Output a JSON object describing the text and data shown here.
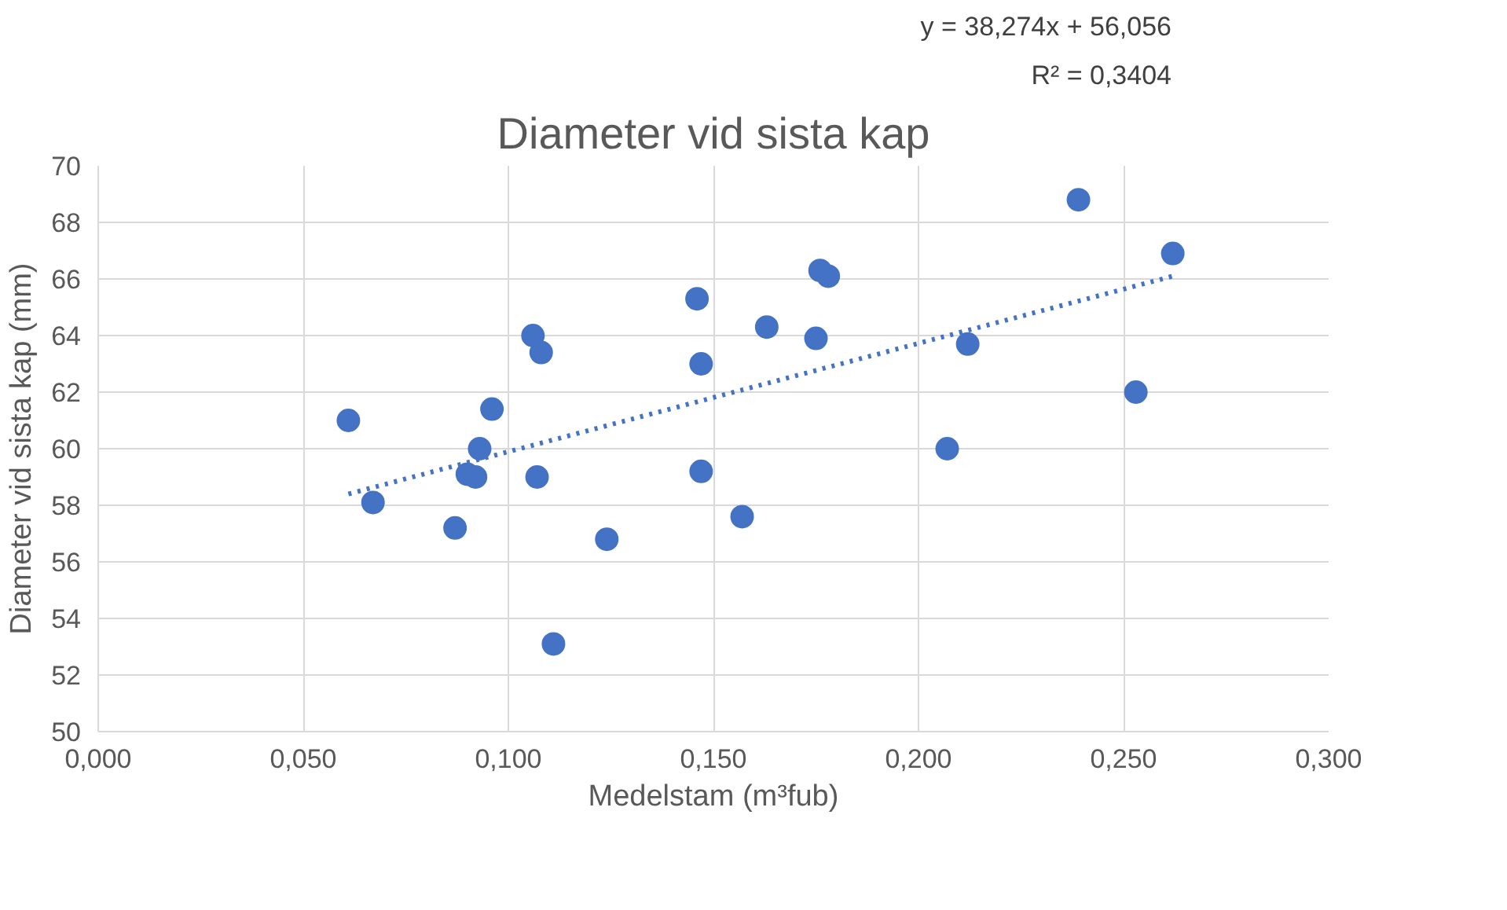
{
  "chart_data": {
    "type": "scatter",
    "title": "Diameter vid sista kap",
    "xlabel": "Medelstam (m³fub)",
    "ylabel": "Diameter vid sista kap (mm)",
    "series": [
      {
        "color": "#4472c4",
        "x": [
          0.061,
          0.067,
          0.087,
          0.09,
          0.092,
          0.093,
          0.096,
          0.106,
          0.108,
          0.107,
          0.111,
          0.124,
          0.146,
          0.147,
          0.147,
          0.157,
          0.163,
          0.175,
          0.176,
          0.178,
          0.207,
          0.212,
          0.239,
          0.253,
          0.262
        ],
        "values": [
          61.0,
          58.1,
          57.2,
          59.1,
          59.0,
          60.0,
          61.4,
          64.0,
          63.4,
          59.0,
          53.1,
          56.8,
          65.3,
          59.2,
          63.0,
          57.6,
          64.3,
          63.9,
          66.3,
          66.1,
          60.0,
          63.7,
          68.8,
          62.0,
          66.9
        ]
      },
      {
        "type": "line",
        "color": "#4472c4",
        "line_style": "dotted",
        "marker": "none",
        "x": [
          0.061,
          0.262
        ],
        "values": [
          58.4,
          66.1
        ]
      }
    ],
    "annotations": [
      "y = 38,274x + 56,056",
      "R² = 0,3404"
    ],
    "marker": "circle",
    "grid": true,
    "xlim": [
      0.0,
      0.3
    ],
    "xticks": [
      {
        "value": 0.0,
        "label": "0,000"
      },
      {
        "value": 0.05,
        "label": "0,050"
      },
      {
        "value": 0.1,
        "label": "0,100"
      },
      {
        "value": 0.15,
        "label": "0,150"
      },
      {
        "value": 0.2,
        "label": "0,200"
      },
      {
        "value": 0.25,
        "label": "0,250"
      },
      {
        "value": 0.3,
        "label": "0,300"
      }
    ],
    "ylim": [
      50,
      70
    ],
    "yticks": [
      50,
      52,
      54,
      56,
      58,
      60,
      62,
      64,
      66,
      68,
      70
    ]
  }
}
